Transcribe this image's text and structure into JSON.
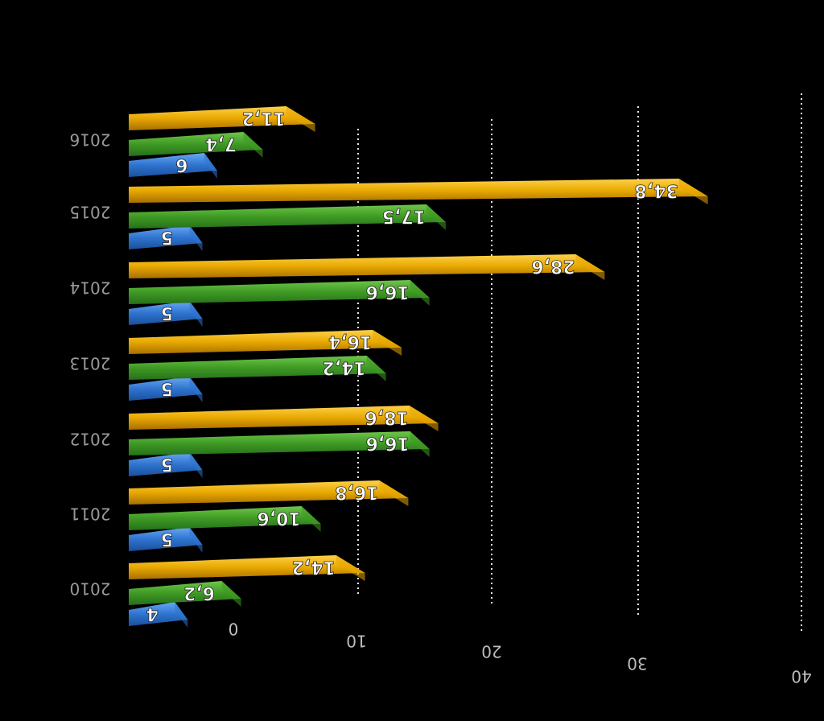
{
  "chart_data": {
    "type": "bar",
    "orientation": "horizontal",
    "transform": "rotated-180",
    "title": "",
    "xlabel": "",
    "ylabel": "",
    "xlim": [
      0,
      40
    ],
    "x_ticks": [
      "0",
      "10",
      "20",
      "30",
      "40"
    ],
    "categories": [
      "2010",
      "2011",
      "2012",
      "2013",
      "2014",
      "2015",
      "2016"
    ],
    "series": [
      {
        "name": "blue",
        "color": "#2f74d0",
        "values": [
          4,
          5,
          5,
          5,
          5,
          5,
          6
        ],
        "labels": [
          "4",
          "5",
          "5",
          "5",
          "5",
          "5",
          "6"
        ]
      },
      {
        "name": "green",
        "color": "#3f9a24",
        "values": [
          6.2,
          10.6,
          16.6,
          14.2,
          16.6,
          17.5,
          7.4
        ],
        "labels": [
          "6,2",
          "10,6",
          "16,6",
          "14,2",
          "16,6",
          "17,5",
          "7,4"
        ]
      },
      {
        "name": "orange",
        "color": "#e8a800",
        "values": [
          14.2,
          16.8,
          18.6,
          16.4,
          28.6,
          34.8,
          11.2
        ],
        "labels": [
          "14,2",
          "16,8",
          "18,6",
          "16,4",
          "28,6",
          "34,8",
          "11,2"
        ]
      }
    ],
    "grid": "vertical-dotted",
    "legend": "none"
  }
}
